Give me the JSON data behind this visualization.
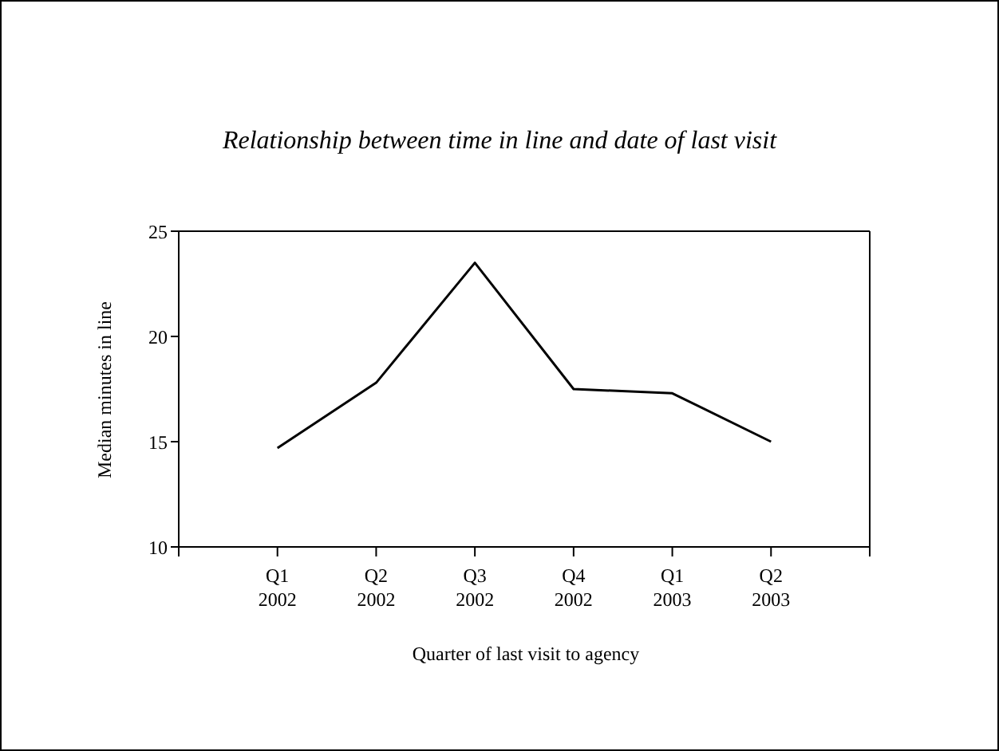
{
  "chart_data": {
    "type": "line",
    "title": "Relationship between time in line and date of last visit",
    "xlabel": "Quarter of last visit to agency",
    "ylabel": "Median minutes in line",
    "categories": [
      "Q1\n2002",
      "Q2\n2002",
      "Q3\n2002",
      "Q4\n2002",
      "Q1\n2003",
      "Q2\n2003"
    ],
    "series": [
      {
        "color": "#000000",
        "values": [
          14.7,
          17.8,
          23.5,
          17.5,
          17.3,
          15.0
        ]
      }
    ],
    "ylim": [
      10,
      25
    ],
    "yticks": [
      10,
      15,
      20,
      25
    ],
    "marker": "none",
    "line_style": "solid"
  }
}
